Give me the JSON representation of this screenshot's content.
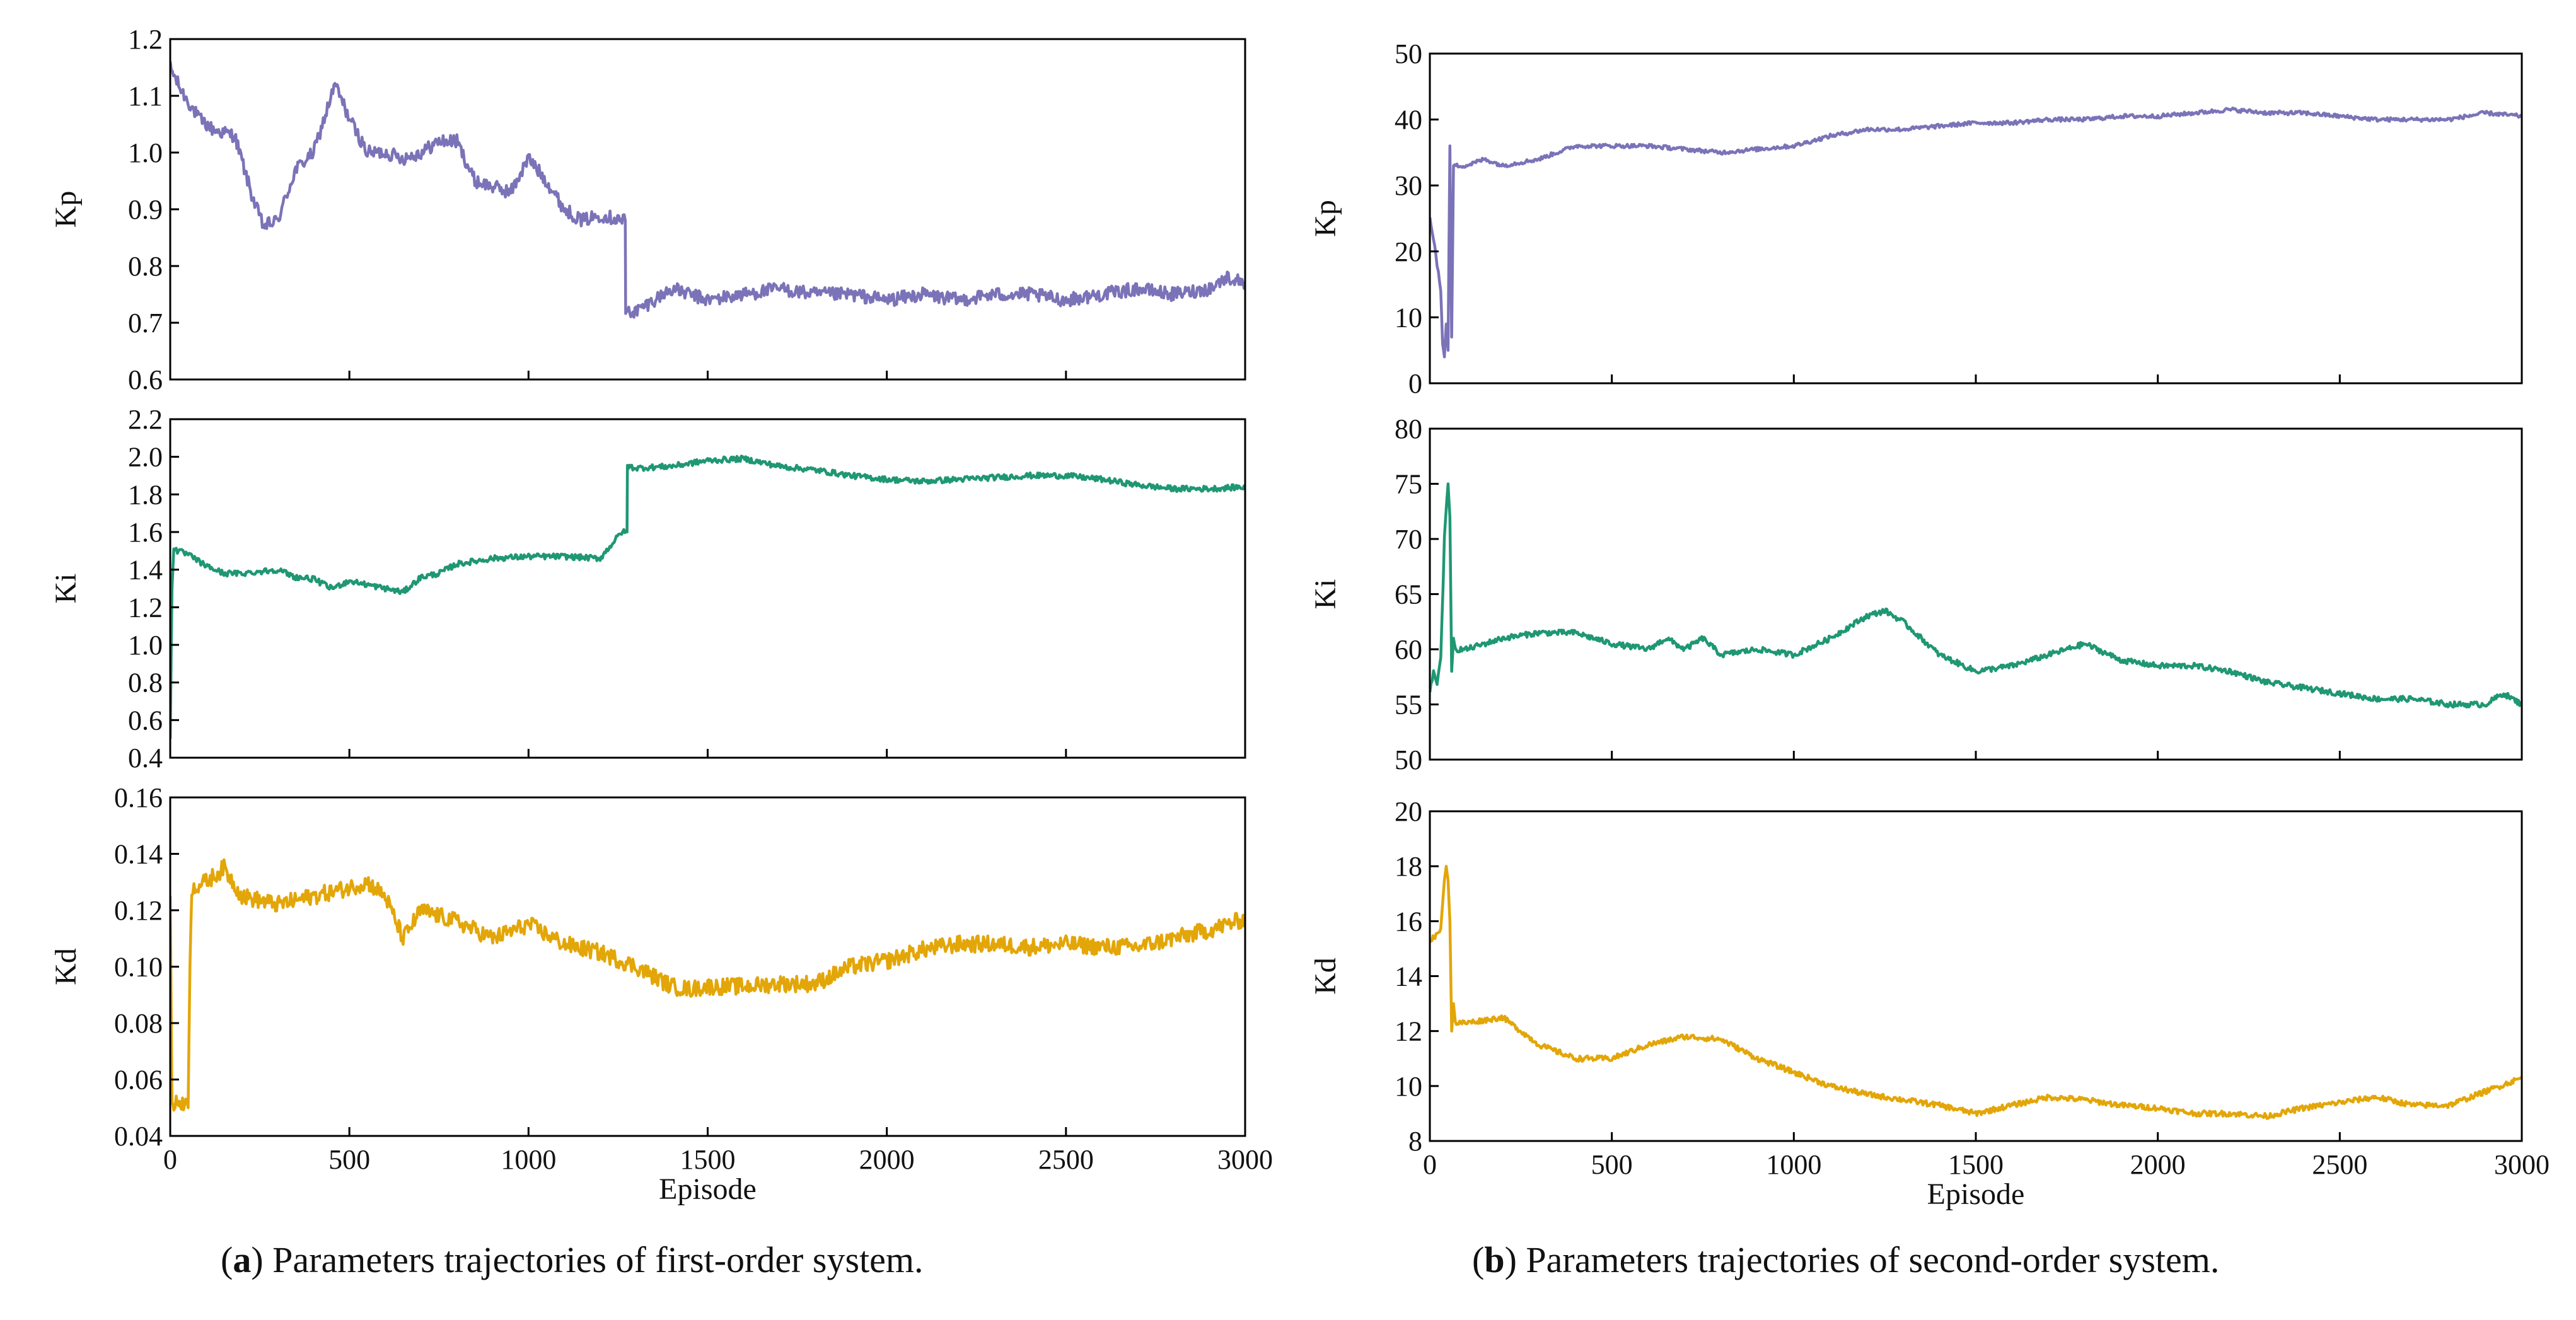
{
  "captions": {
    "a": {
      "letter": "a",
      "text": " Parameters trajectories of first-order system."
    },
    "b": {
      "letter": "b",
      "text": " Parameters trajectories of second-order system."
    }
  },
  "colors": {
    "Kp": "#7b73b8",
    "Ki": "#1f9773",
    "Kd": "#e3a608"
  },
  "chart_data": [
    {
      "panel": "a",
      "type": "line",
      "series_name": "Kp",
      "ylabel": "Kp",
      "xlabel": "",
      "xlim": [
        0,
        3000
      ],
      "ylim": [
        0.6,
        1.2
      ],
      "xticks": [],
      "xtick_labels": [
        "0",
        "500",
        "1000",
        "1500",
        "2000",
        "2500",
        "3000"
      ],
      "yticks": [
        0.6,
        0.7,
        0.8,
        0.9,
        1.0,
        1.1,
        1.2
      ],
      "ytick_labels": [
        "0.6",
        "0.7",
        "0.8",
        "0.9",
        "1.0",
        "1.1",
        "1.2"
      ],
      "noise": 0.012,
      "x": [
        0,
        30,
        80,
        120,
        180,
        230,
        260,
        300,
        350,
        400,
        460,
        500,
        550,
        600,
        650,
        700,
        750,
        800,
        850,
        900,
        950,
        1000,
        1050,
        1100,
        1150,
        1200,
        1270,
        1271,
        1300,
        1400,
        1500,
        1600,
        1700,
        1800,
        1900,
        2000,
        2100,
        2200,
        2300,
        2400,
        2500,
        2600,
        2700,
        2800,
        2900,
        2950,
        3000
      ],
      "y": [
        1.15,
        1.11,
        1.06,
        1.04,
        1.03,
        0.92,
        0.87,
        0.88,
        0.97,
        1.0,
        1.12,
        1.06,
        1.0,
        1.0,
        0.99,
        1.0,
        1.02,
        1.02,
        0.95,
        0.94,
        0.93,
        0.99,
        0.95,
        0.9,
        0.88,
        0.89,
        0.88,
        0.72,
        0.72,
        0.76,
        0.74,
        0.75,
        0.76,
        0.75,
        0.75,
        0.74,
        0.75,
        0.74,
        0.75,
        0.75,
        0.74,
        0.75,
        0.76,
        0.75,
        0.76,
        0.78,
        0.77
      ]
    },
    {
      "panel": "a",
      "type": "line",
      "series_name": "Ki",
      "ylabel": "Ki",
      "xlabel": "",
      "xlim": [
        0,
        3000
      ],
      "ylim": [
        0.4,
        2.2
      ],
      "xticks": [],
      "xtick_labels": [
        "0",
        "500",
        "1000",
        "1500",
        "2000",
        "2500",
        "3000"
      ],
      "yticks": [
        0.4,
        0.6,
        0.8,
        1.0,
        1.2,
        1.4,
        1.6,
        1.8,
        2.0,
        2.2
      ],
      "ytick_labels": [
        "0.4",
        "0.6",
        "0.8",
        "1.0",
        "1.2",
        "1.4",
        "1.6",
        "1.8",
        "2.0",
        "2.2"
      ],
      "noise": 0.015,
      "x": [
        0,
        5,
        10,
        20,
        50,
        100,
        150,
        200,
        300,
        350,
        400,
        450,
        500,
        550,
        600,
        650,
        700,
        750,
        800,
        900,
        1000,
        1100,
        1200,
        1260,
        1275,
        1276,
        1300,
        1400,
        1500,
        1600,
        1700,
        1800,
        1900,
        2000,
        2100,
        2200,
        2300,
        2400,
        2500,
        2600,
        2700,
        2800,
        2900,
        3000
      ],
      "y": [
        0.5,
        1.3,
        1.52,
        1.5,
        1.48,
        1.42,
        1.38,
        1.38,
        1.4,
        1.36,
        1.35,
        1.3,
        1.34,
        1.32,
        1.3,
        1.28,
        1.36,
        1.38,
        1.43,
        1.46,
        1.47,
        1.47,
        1.46,
        1.6,
        1.6,
        1.95,
        1.94,
        1.95,
        1.98,
        1.99,
        1.95,
        1.93,
        1.9,
        1.88,
        1.87,
        1.88,
        1.89,
        1.9,
        1.9,
        1.88,
        1.85,
        1.83,
        1.83,
        1.84
      ]
    },
    {
      "panel": "a",
      "type": "line",
      "series_name": "Kd",
      "ylabel": "Kd",
      "xlabel": "Episode",
      "xlim": [
        0,
        3000
      ],
      "ylim": [
        0.04,
        0.16
      ],
      "xticks": [
        0,
        500,
        1000,
        1500,
        2000,
        2500,
        3000
      ],
      "xtick_labels": [
        "0",
        "500",
        "1000",
        "1500",
        "2000",
        "2500",
        "3000"
      ],
      "yticks": [
        0.04,
        0.06,
        0.08,
        0.1,
        0.12,
        0.14,
        0.16
      ],
      "ytick_labels": [
        "0.04",
        "0.06",
        "0.08",
        "0.10",
        "0.12",
        "0.14",
        "0.16"
      ],
      "noise": 0.003,
      "x": [
        0,
        5,
        10,
        20,
        40,
        50,
        55,
        60,
        100,
        150,
        200,
        300,
        400,
        500,
        550,
        600,
        650,
        700,
        800,
        900,
        1000,
        1100,
        1200,
        1300,
        1400,
        1450,
        1500,
        1600,
        1700,
        1800,
        1900,
        2000,
        2100,
        2200,
        2300,
        2400,
        2500,
        2600,
        2700,
        2800,
        2900,
        3000
      ],
      "y": [
        0.125,
        0.052,
        0.05,
        0.052,
        0.052,
        0.05,
        0.1,
        0.128,
        0.13,
        0.135,
        0.125,
        0.122,
        0.125,
        0.128,
        0.13,
        0.125,
        0.11,
        0.12,
        0.116,
        0.11,
        0.115,
        0.108,
        0.105,
        0.1,
        0.093,
        0.092,
        0.093,
        0.093,
        0.094,
        0.094,
        0.1,
        0.102,
        0.106,
        0.108,
        0.108,
        0.107,
        0.108,
        0.107,
        0.107,
        0.11,
        0.113,
        0.117
      ]
    },
    {
      "panel": "b",
      "type": "line",
      "series_name": "Kp",
      "ylabel": "Kp",
      "xlabel": "",
      "xlim": [
        0,
        3000
      ],
      "ylim": [
        0,
        50
      ],
      "xticks": [],
      "xtick_labels": [
        "0",
        "500",
        "1000",
        "1500",
        "2000",
        "2500",
        "3000"
      ],
      "yticks": [
        0,
        10,
        20,
        30,
        40,
        50
      ],
      "ytick_labels": [
        "0",
        "10",
        "20",
        "30",
        "40",
        "50"
      ],
      "noise": 0.3,
      "x": [
        0,
        10,
        20,
        30,
        35,
        40,
        45,
        50,
        55,
        60,
        65,
        66,
        80,
        100,
        150,
        200,
        300,
        400,
        500,
        600,
        700,
        800,
        900,
        1000,
        1100,
        1200,
        1300,
        1400,
        1500,
        1600,
        1700,
        1800,
        1900,
        2000,
        2100,
        2200,
        2300,
        2400,
        2500,
        2600,
        2700,
        2800,
        2900,
        3000
      ],
      "y": [
        25,
        22,
        18,
        14,
        6,
        4,
        9,
        5,
        36,
        7,
        33,
        33,
        33,
        33,
        34,
        33,
        34,
        36,
        36,
        36,
        35.5,
        35,
        35.5,
        36,
        37.5,
        38.5,
        38.5,
        39,
        39.5,
        39.5,
        40,
        40,
        40.5,
        40.5,
        41,
        41.5,
        41,
        41,
        40.5,
        40,
        40,
        40,
        41,
        40.5
      ]
    },
    {
      "panel": "b",
      "type": "line",
      "series_name": "Ki",
      "ylabel": "Ki",
      "xlabel": "",
      "xlim": [
        0,
        3000
      ],
      "ylim": [
        50,
        80
      ],
      "xticks": [],
      "xtick_labels": [
        "0",
        "500",
        "1000",
        "1500",
        "2000",
        "2500",
        "3000"
      ],
      "yticks": [
        50,
        55,
        60,
        65,
        70,
        75,
        80
      ],
      "ytick_labels": [
        "50",
        "55",
        "60",
        "65",
        "70",
        "75",
        "80"
      ],
      "noise": 0.25,
      "x": [
        0,
        10,
        20,
        30,
        40,
        50,
        55,
        60,
        65,
        70,
        100,
        150,
        200,
        300,
        400,
        500,
        600,
        650,
        700,
        750,
        800,
        900,
        1000,
        1100,
        1200,
        1250,
        1300,
        1400,
        1500,
        1600,
        1700,
        1800,
        1900,
        2000,
        2100,
        2200,
        2300,
        2400,
        2500,
        2600,
        2700,
        2800,
        2900,
        2950,
        3000
      ],
      "y": [
        56,
        58,
        57,
        59,
        70,
        75,
        72,
        58,
        61,
        60,
        60,
        60.5,
        61,
        61.5,
        61.5,
        60.5,
        60,
        61,
        60,
        61,
        59.5,
        60,
        59.5,
        61,
        63,
        63.5,
        62.5,
        59.5,
        58,
        58.5,
        59.5,
        60.5,
        59,
        58.5,
        58.5,
        58,
        57,
        56.5,
        56,
        55.5,
        55.5,
        55,
        55,
        56,
        55
      ]
    },
    {
      "panel": "b",
      "type": "line",
      "series_name": "Kd",
      "ylabel": "Kd",
      "xlabel": "Episode",
      "xlim": [
        0,
        3000
      ],
      "ylim": [
        8,
        20
      ],
      "xticks": [
        0,
        500,
        1000,
        1500,
        2000,
        2500,
        3000
      ],
      "xtick_labels": [
        "0",
        "500",
        "1000",
        "1500",
        "2000",
        "2500",
        "3000"
      ],
      "yticks": [
        8,
        10,
        12,
        14,
        16,
        18,
        20
      ],
      "ytick_labels": [
        "8",
        "10",
        "12",
        "14",
        "16",
        "18",
        "20"
      ],
      "noise": 0.1,
      "x": [
        0,
        20,
        30,
        40,
        45,
        50,
        55,
        60,
        65,
        70,
        100,
        200,
        300,
        400,
        500,
        600,
        700,
        800,
        900,
        1000,
        1100,
        1200,
        1300,
        1400,
        1500,
        1600,
        1700,
        1800,
        1900,
        2000,
        2100,
        2200,
        2300,
        2400,
        2500,
        2600,
        2700,
        2800,
        2900,
        3000
      ],
      "y": [
        15.3,
        15.5,
        15.8,
        17.5,
        18,
        17.5,
        16,
        12,
        13,
        12.3,
        12.3,
        12.5,
        11.5,
        11,
        11,
        11.5,
        11.8,
        11.7,
        11,
        10.5,
        10,
        9.7,
        9.5,
        9.3,
        9,
        9.3,
        9.6,
        9.5,
        9.3,
        9.2,
        9,
        9,
        8.9,
        9.2,
        9.4,
        9.6,
        9.3,
        9.3,
        9.8,
        10.3
      ]
    }
  ]
}
